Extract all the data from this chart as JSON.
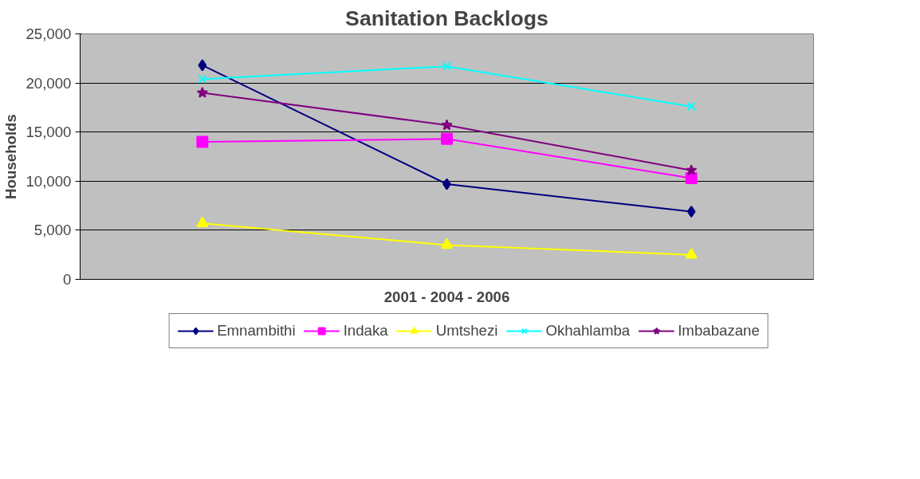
{
  "chart_data": {
    "type": "line",
    "title": "Sanitation Backlogs",
    "xlabel": "2001 - 2004 - 2006",
    "ylabel": "Households",
    "categories": [
      null,
      null,
      null
    ],
    "ylim": [
      0,
      25000
    ],
    "yticks": [
      {
        "value": 0,
        "label": "0"
      },
      {
        "value": 5000,
        "label": "5,000"
      },
      {
        "value": 10000,
        "label": "10,000"
      },
      {
        "value": 15000,
        "label": "15,000"
      },
      {
        "value": 20000,
        "label": "20,000"
      },
      {
        "value": 25000,
        "label": "25,000"
      }
    ],
    "grid": "y",
    "legend": "bottom",
    "tick_labels": "y",
    "line_style": "solid",
    "series": [
      {
        "name": "Emnambithi",
        "color": "#000080",
        "marker": "diamond",
        "values": [
          21800,
          9700,
          6900
        ]
      },
      {
        "name": "Indaka",
        "color": "#ff00ff",
        "marker": "square",
        "values": [
          14000,
          14300,
          10300
        ]
      },
      {
        "name": "Umtshezi",
        "color": "#ffff00",
        "marker": "triangle",
        "values": [
          5700,
          3500,
          2500
        ]
      },
      {
        "name": "Okhahlamba",
        "color": "#00ffff",
        "marker": "cross",
        "values": [
          20400,
          21700,
          17600
        ]
      },
      {
        "name": "Imbabazane",
        "color": "#800080",
        "marker": "star",
        "values": [
          19000,
          15700,
          11100
        ]
      }
    ]
  }
}
